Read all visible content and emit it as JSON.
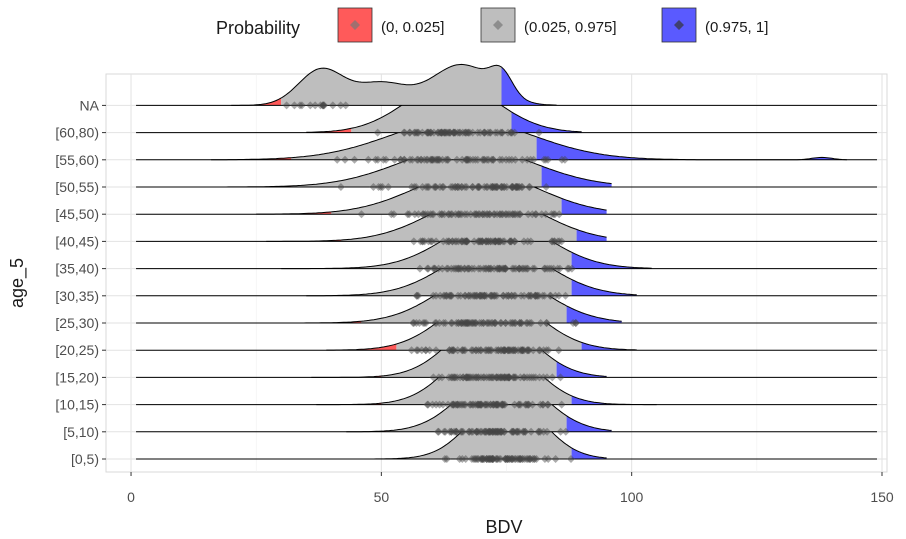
{
  "chart_data": {
    "type": "ridgeline",
    "xlabel": "BDV",
    "ylabel": "age_5",
    "xlim": [
      -5,
      151
    ],
    "x_ticks": [
      0,
      50,
      100,
      150
    ],
    "grid": "on",
    "legend": {
      "title": "Probability",
      "placement": "top",
      "entries": [
        {
          "label": "(0, 0.025]",
          "color": "#FF5A5A"
        },
        {
          "label": "(0.025, 0.975]",
          "color": "#BEBEBE"
        },
        {
          "label": "(0.975, 1]",
          "color": "#5A5AFF"
        }
      ]
    },
    "categories": [
      "[0,5)",
      "[5,10)",
      "[10,15)",
      "[15,20)",
      "[20,25)",
      "[25,30)",
      "[30,35)",
      "[35,40)",
      "[40,45)",
      "[45,50)",
      "[50,55)",
      "[55,60)",
      "[60,80)",
      "NA"
    ],
    "series": [
      {
        "category": "[0,5)",
        "range": [
          47,
          95
        ],
        "q_low": 54,
        "q_high": 88,
        "peaks": [
          {
            "x": 75,
            "sd": 7,
            "h": 1.3
          }
        ]
      },
      {
        "category": "[5,10)",
        "range": [
          43,
          96
        ],
        "q_low": 51,
        "q_high": 87,
        "peaks": [
          {
            "x": 74,
            "sd": 8,
            "h": 1.25
          }
        ]
      },
      {
        "category": "[10,15)",
        "range": [
          37,
          105
        ],
        "q_low": 50,
        "q_high": 88,
        "peaks": [
          {
            "x": 72,
            "sd": 8,
            "h": 1.35
          }
        ]
      },
      {
        "category": "[15,20)",
        "range": [
          36,
          95
        ],
        "q_low": 50,
        "q_high": 85,
        "peaks": [
          {
            "x": 72,
            "sd": 8,
            "h": 1.25
          }
        ]
      },
      {
        "category": "[20,25)",
        "range": [
          39,
          101
        ],
        "q_low": 53,
        "q_high": 90,
        "peaks": [
          {
            "x": 72,
            "sd": 9,
            "h": 1.2
          }
        ]
      },
      {
        "category": "[25,30)",
        "range": [
          34,
          98
        ],
        "q_low": 46,
        "q_high": 87,
        "peaks": [
          {
            "x": 72,
            "sd": 10,
            "h": 1.1
          }
        ]
      },
      {
        "category": "[30,35)",
        "range": [
          35,
          101
        ],
        "q_low": 44,
        "q_high": 88,
        "peaks": [
          {
            "x": 73,
            "sd": 10,
            "h": 1.05
          }
        ]
      },
      {
        "category": "[35,40)",
        "range": [
          30,
          104
        ],
        "q_low": 44,
        "q_high": 88,
        "peaks": [
          {
            "x": 73,
            "sd": 10,
            "h": 1.05
          }
        ]
      },
      {
        "category": "[40,45)",
        "range": [
          27,
          95
        ],
        "q_low": 42,
        "q_high": 89,
        "peaks": [
          {
            "x": 71,
            "sd": 11,
            "h": 0.95
          }
        ]
      },
      {
        "category": "[45,50)",
        "range": [
          25,
          95
        ],
        "q_low": 40,
        "q_high": 86,
        "peaks": [
          {
            "x": 69,
            "sd": 12,
            "h": 0.9
          }
        ]
      },
      {
        "category": "[50,55)",
        "range": [
          12,
          96
        ],
        "q_low": 32,
        "q_high": 82,
        "peaks": [
          {
            "x": 67,
            "sd": 13,
            "h": 0.85
          }
        ]
      },
      {
        "category": "[55,60)",
        "range": [
          16,
          143
        ],
        "q_low": 32,
        "q_high": 81,
        "peaks": [
          {
            "x": 66,
            "sd": 14,
            "h": 0.85
          },
          {
            "x": 138,
            "sd": 2,
            "h": 0.05
          }
        ]
      },
      {
        "category": "[60,80)",
        "range": [
          35,
          90
        ],
        "q_low": 44,
        "q_high": 76,
        "peaks": [
          {
            "x": 64,
            "sd": 9,
            "h": 1.05
          }
        ]
      },
      {
        "category": "NA",
        "range": [
          20,
          85
        ],
        "q_low": 30,
        "q_high": 74,
        "peaks": [
          {
            "x": 38,
            "sd": 4.5,
            "h": 0.75
          },
          {
            "x": 50,
            "sd": 5,
            "h": 0.45
          },
          {
            "x": 66,
            "sd": 6,
            "h": 0.85
          },
          {
            "x": 74,
            "sd": 2.2,
            "h": 0.45
          }
        ]
      }
    ]
  }
}
